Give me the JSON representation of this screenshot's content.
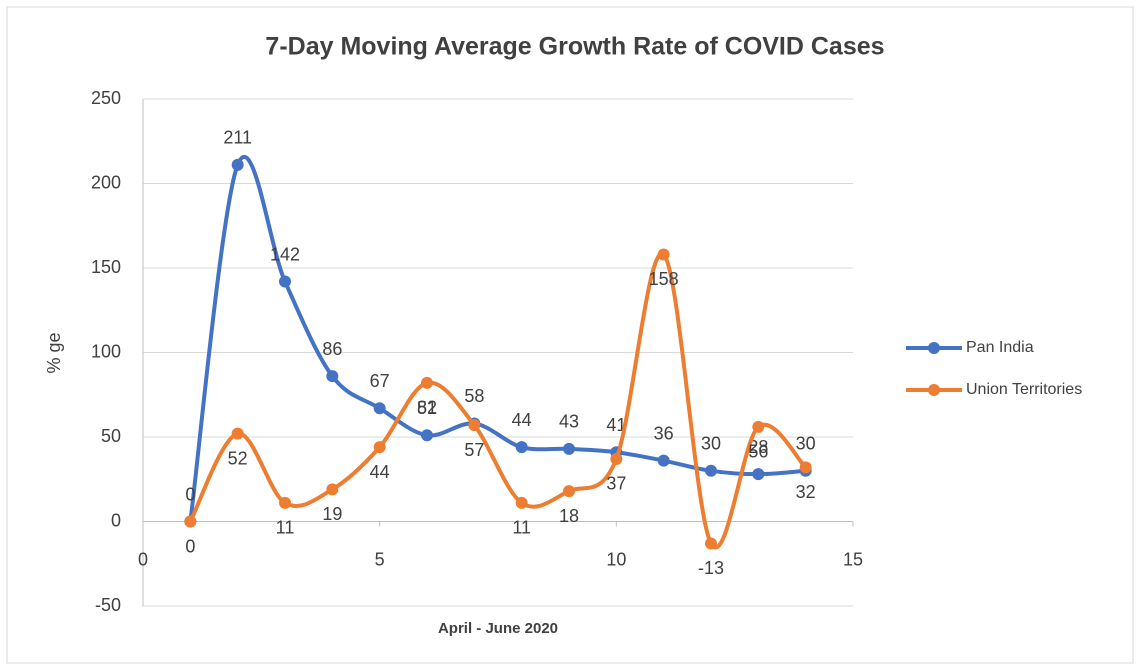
{
  "chart_data": {
    "type": "line",
    "smooth": true,
    "title": "7-Day Moving Average Growth Rate of COVID Cases",
    "xlabel": "April - June 2020",
    "ylabel": "% ge",
    "x": [
      1,
      2,
      3,
      4,
      5,
      6,
      7,
      8,
      9,
      10,
      11,
      12,
      13,
      14
    ],
    "series": [
      {
        "name": "Pan India",
        "color": "#4472c4",
        "values": [
          0,
          211,
          142,
          86,
          67,
          51,
          58,
          44,
          43,
          41,
          36,
          30,
          28,
          30
        ]
      },
      {
        "name": "Union Territories",
        "color": "#ed7d31",
        "values": [
          0,
          52,
          11,
          19,
          44,
          82,
          57,
          11,
          18,
          37,
          158,
          -13,
          56,
          32
        ]
      }
    ],
    "xlim": [
      0,
      15
    ],
    "xticks": [
      0,
      5,
      10,
      15
    ],
    "ylim": [
      -50,
      250
    ],
    "yticks": [
      -50,
      0,
      50,
      100,
      150,
      200,
      250
    ],
    "grid": true,
    "legend": "right"
  }
}
